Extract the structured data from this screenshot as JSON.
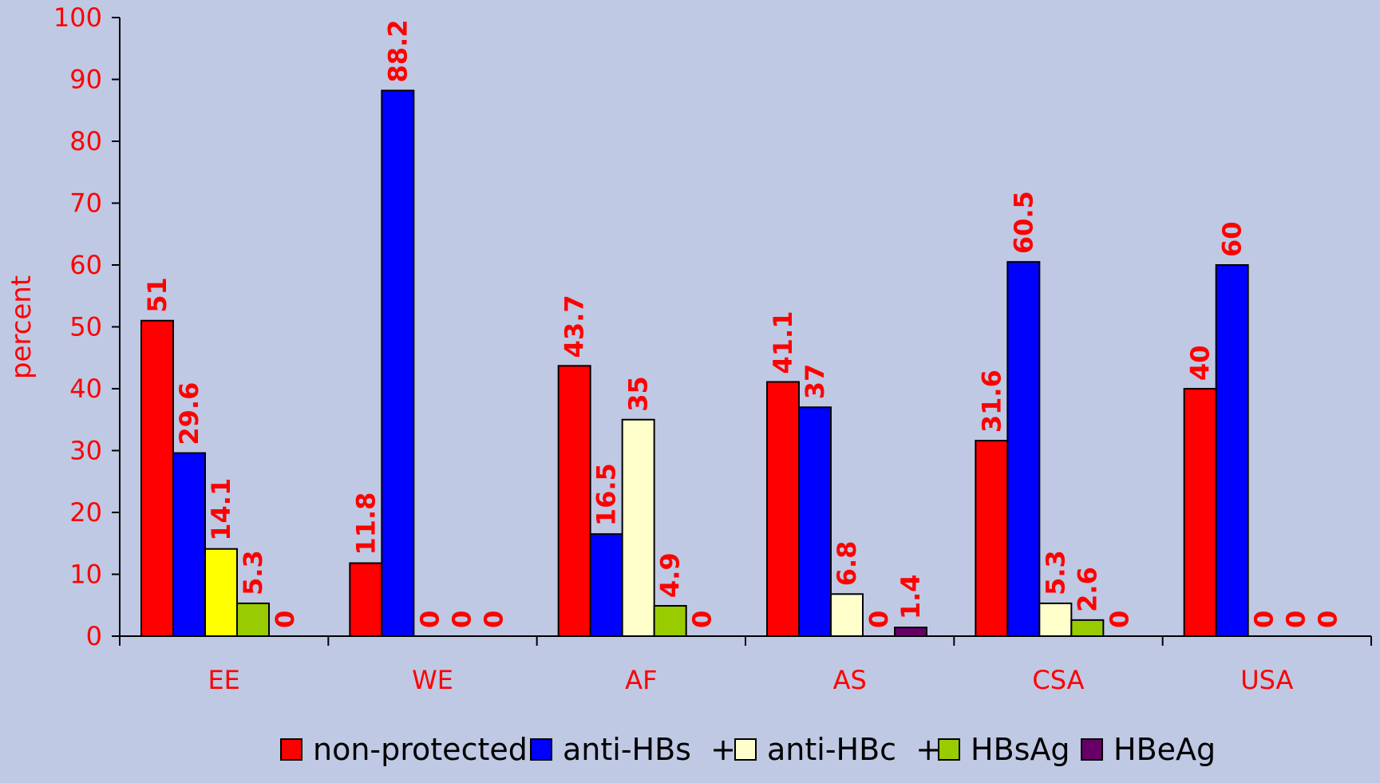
{
  "chart_data": {
    "type": "bar",
    "ylabel": "percent",
    "ylim": [
      0,
      100
    ],
    "yticks": [
      "0",
      "10",
      "20",
      "30",
      "40",
      "50",
      "60",
      "70",
      "80",
      "90",
      "100"
    ],
    "categories": [
      "EE",
      "WE",
      "AF",
      "AS",
      "CSA",
      "USA"
    ],
    "grid": false,
    "legend_position": "bottom",
    "series": [
      {
        "name": "non-protected",
        "color": "#ff0000",
        "values": [
          51,
          11.8,
          43.7,
          41.1,
          31.6,
          40
        ]
      },
      {
        "name": "anti-HBs  +",
        "color": "#0000ff",
        "values": [
          29.6,
          88.2,
          16.5,
          37,
          60.5,
          60
        ]
      },
      {
        "name": "anti-HBc  +",
        "color": "#ffffcc",
        "values": [
          14.1,
          0,
          35,
          6.8,
          5.3,
          0
        ],
        "alt_color": "#ffff00",
        "alt_index": 0
      },
      {
        "name": "HBsAg",
        "color": "#99cc00",
        "values": [
          5.3,
          0,
          4.9,
          0,
          2.6,
          0
        ]
      },
      {
        "name": "HBeAg",
        "color": "#660066",
        "values": [
          0,
          0,
          0,
          1.4,
          0,
          0
        ]
      }
    ],
    "data_labels": [
      [
        "51",
        "29.6",
        "14.1",
        "5.3",
        "0"
      ],
      [
        "11.8",
        "88.2",
        "0",
        "0",
        "0"
      ],
      [
        "43.7",
        "16.5",
        "35",
        "4.9",
        "0"
      ],
      [
        "41.1",
        "37",
        "6.8",
        "0",
        "1.4"
      ],
      [
        "31.6",
        "60.5",
        "5.3",
        "2.6",
        "0"
      ],
      [
        "40",
        "60",
        "0",
        "0",
        "0"
      ]
    ],
    "colors": {
      "text": "#ff0000",
      "axis": "#000000",
      "background": "#bfc9e4"
    }
  }
}
